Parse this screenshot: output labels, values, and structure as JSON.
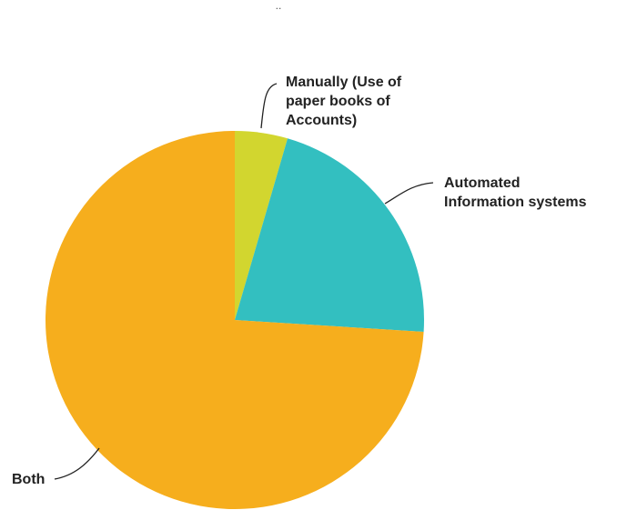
{
  "chart_data": {
    "type": "pie",
    "title": "",
    "slices": [
      {
        "label_lines": [
          "Manually (Use of",
          "paper books of",
          "Accounts)"
        ],
        "value": 4.5,
        "color": "#d2d62f"
      },
      {
        "label_lines": [
          "Automated",
          "Information systems"
        ],
        "value": 21.5,
        "color": "#33bfc0"
      },
      {
        "label_lines": [
          "Both"
        ],
        "value": 74.0,
        "color": "#f6ae1d"
      }
    ],
    "legend": "none",
    "start_angle_deg": 0,
    "direction": "clockwise"
  },
  "top_mark": ".."
}
